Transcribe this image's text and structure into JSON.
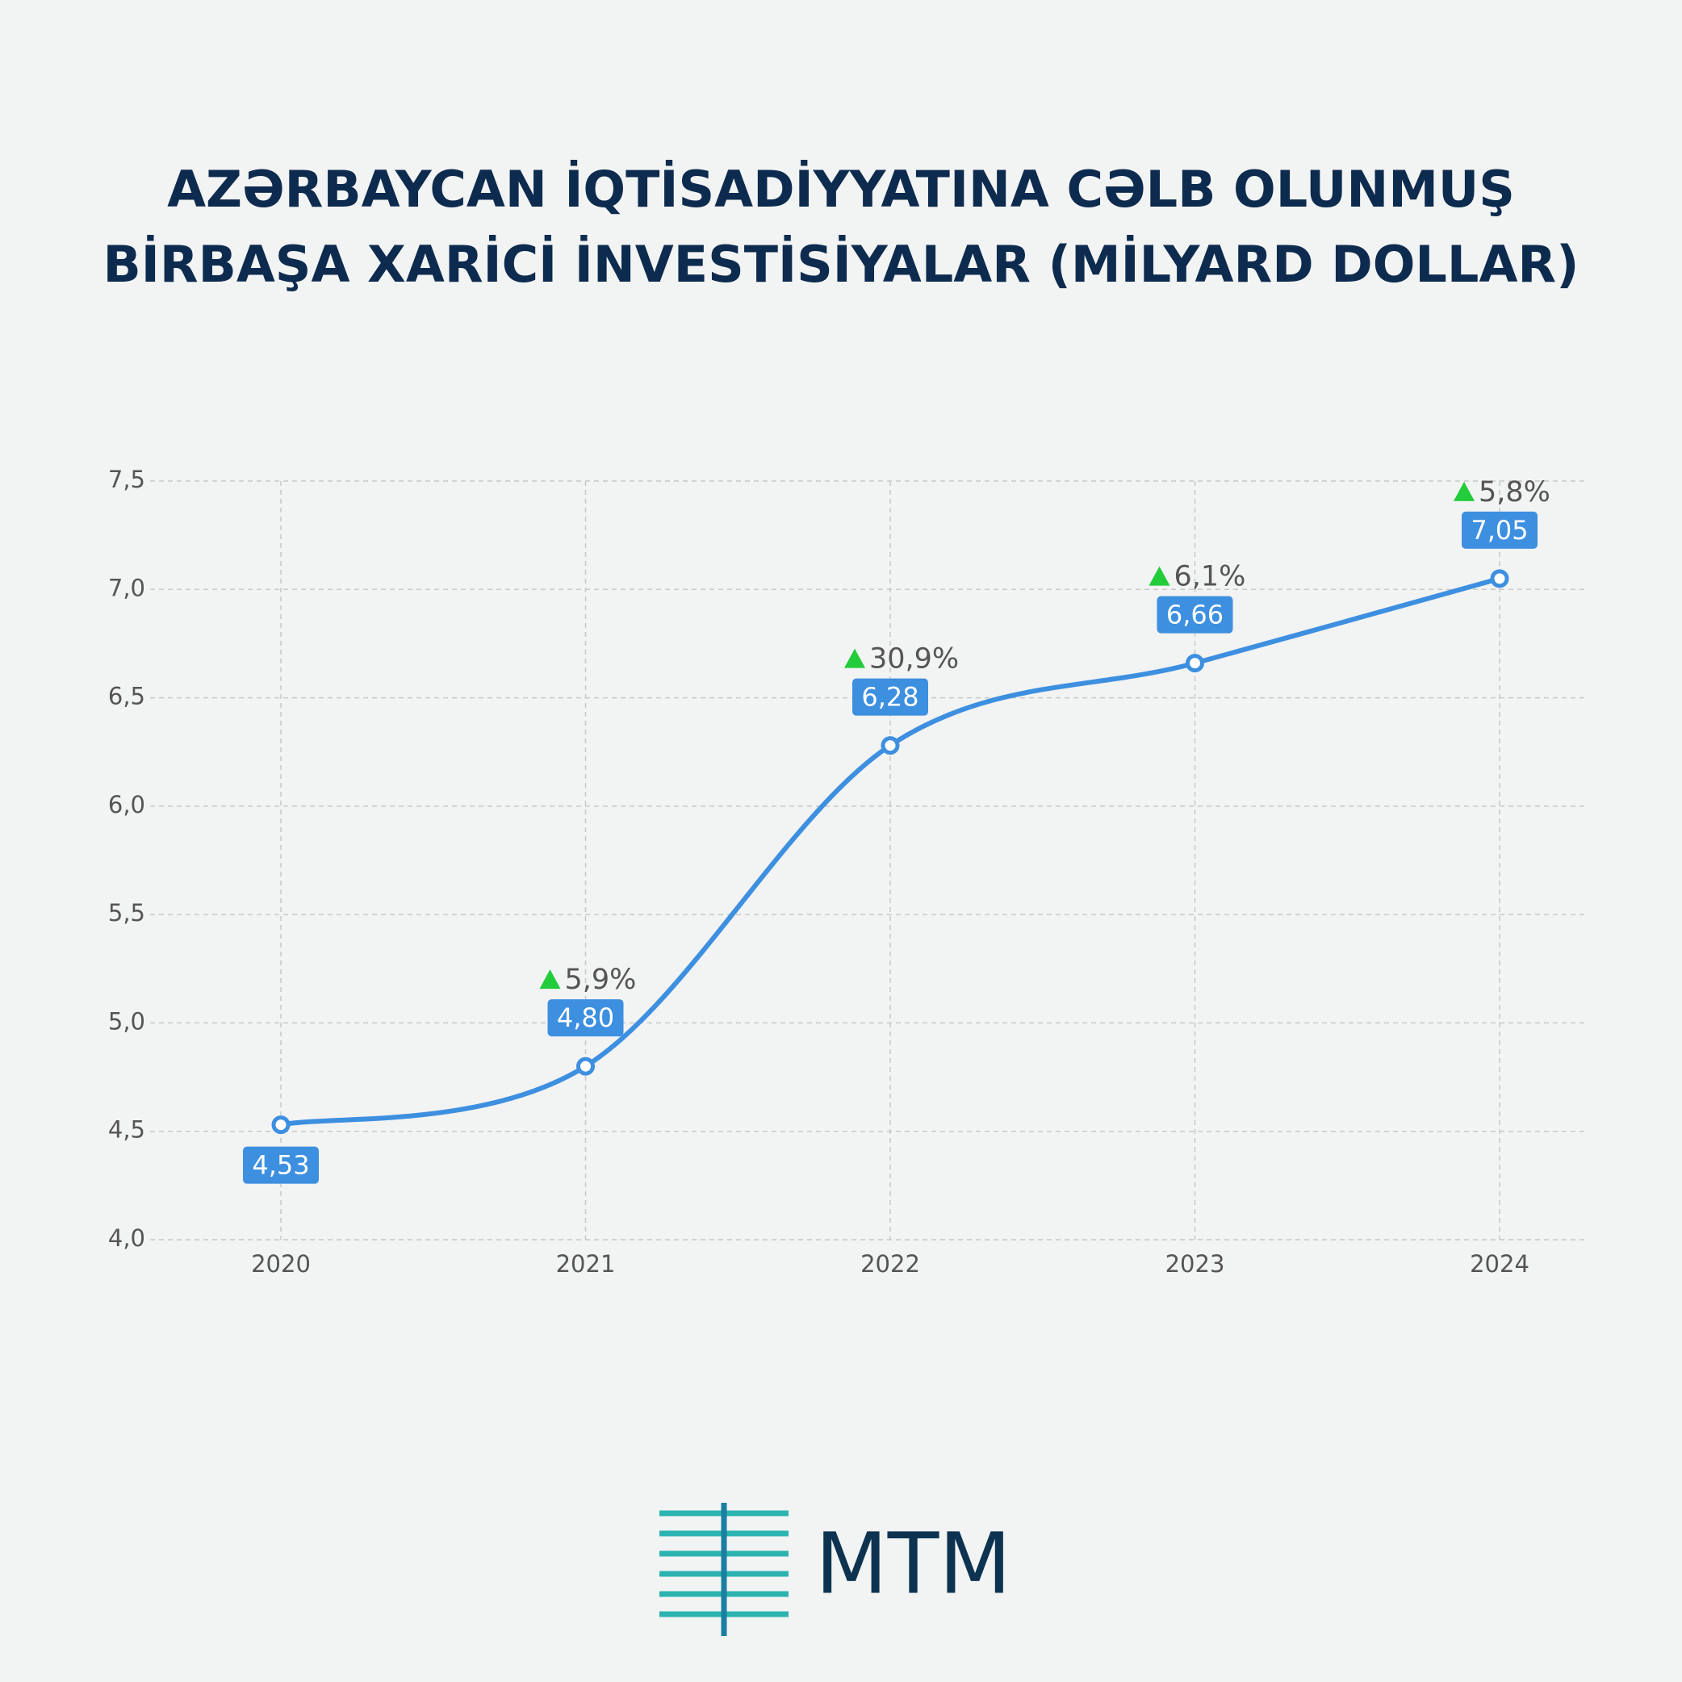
{
  "chart_data": {
    "type": "line",
    "title": [
      "AZƏRBAYCAN İQTİSADİYYATINA CƏLB OLUNMUŞ",
      "BİRBAŞA XARİCİ İNVESTİSİYALAR (MİLYARD DOLLAR)"
    ],
    "categories": [
      "2020",
      "2021",
      "2022",
      "2023",
      "2024"
    ],
    "values": [
      4.53,
      4.8,
      6.28,
      6.66,
      7.05
    ],
    "value_labels": [
      "4,53",
      "4,80",
      "6,28",
      "6,66",
      "7,05"
    ],
    "annotations": [
      "5,9%",
      "30,9%",
      "6,1%",
      "5,8%"
    ],
    "color": "#3d8fe0",
    "ylim": [
      4,
      7.5
    ],
    "yticks": [
      {
        "value": 4,
        "label": "4,0"
      },
      {
        "value": 4.5,
        "label": "4,5"
      },
      {
        "value": 5,
        "label": "5,0"
      },
      {
        "value": 5.5,
        "label": "5,5"
      },
      {
        "value": 6,
        "label": "6,0"
      },
      {
        "value": 6.5,
        "label": "6,5"
      },
      {
        "value": 7,
        "label": "7,0"
      },
      {
        "value": 7.5,
        "label": "7,5"
      }
    ],
    "grid": true,
    "logo": "MTM"
  }
}
